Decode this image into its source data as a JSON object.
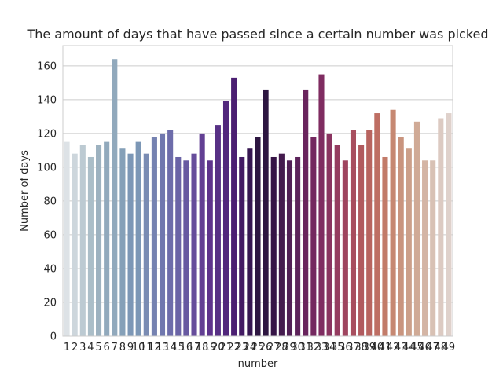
{
  "chart_data": {
    "type": "bar",
    "title": "The amount of days that have passed since a certain number was picked",
    "xlabel": "number",
    "ylabel": "Number of days",
    "categories": [
      "1",
      "2",
      "3",
      "4",
      "5",
      "6",
      "7",
      "8",
      "9",
      "10",
      "11",
      "12",
      "13",
      "14",
      "15",
      "16",
      "17",
      "18",
      "19",
      "20",
      "21",
      "22",
      "23",
      "24",
      "25",
      "26",
      "27",
      "28",
      "29",
      "30",
      "31",
      "32",
      "33",
      "34",
      "35",
      "36",
      "37",
      "38",
      "39",
      "40",
      "41",
      "42",
      "43",
      "44",
      "45",
      "46",
      "47",
      "48",
      "49"
    ],
    "values": [
      115,
      108,
      113,
      106,
      113,
      115,
      164,
      111,
      108,
      115,
      108,
      118,
      120,
      122,
      106,
      104,
      108,
      120,
      104,
      125,
      139,
      153,
      106,
      111,
      118,
      146,
      106,
      108,
      104,
      106,
      146,
      118,
      155,
      120,
      113,
      104,
      122,
      113,
      122,
      132,
      106,
      134,
      118,
      111,
      127,
      104,
      104,
      129,
      132
    ],
    "colors": [
      "#dde2e6",
      "#cdd6dc",
      "#bccad2",
      "#abbec8",
      "#9db2c0",
      "#91a9bc",
      "#91a9bc",
      "#85a0b8",
      "#7c97b6",
      "#7c97b6",
      "#7a8cb3",
      "#7582b1",
      "#7077ae",
      "#6d6caa",
      "#6a63a6",
      "#6759a1",
      "#664d9b",
      "#623f93",
      "#5e338c",
      "#573085",
      "#51277c",
      "#4b1f72",
      "#421a63",
      "#361651",
      "#2d1641",
      "#2d1641",
      "#361446",
      "#441b4e",
      "#511f55",
      "#5c225a",
      "#69245d",
      "#74285f",
      "#7f2c61",
      "#8a3360",
      "#953c60",
      "#9f455f",
      "#a84e5e",
      "#b15a5e",
      "#b8645f",
      "#be6e63",
      "#c27b69",
      "#c68872",
      "#c9947e",
      "#cc9f89",
      "#d0aa96",
      "#d4b5a5",
      "#d8c1b4",
      "#dccac2",
      "#dfd1cb"
    ],
    "ylim": [
      0,
      172
    ],
    "yticks": [
      0,
      20,
      40,
      60,
      80,
      100,
      120,
      140,
      160
    ],
    "grid": true,
    "legend": "none"
  }
}
